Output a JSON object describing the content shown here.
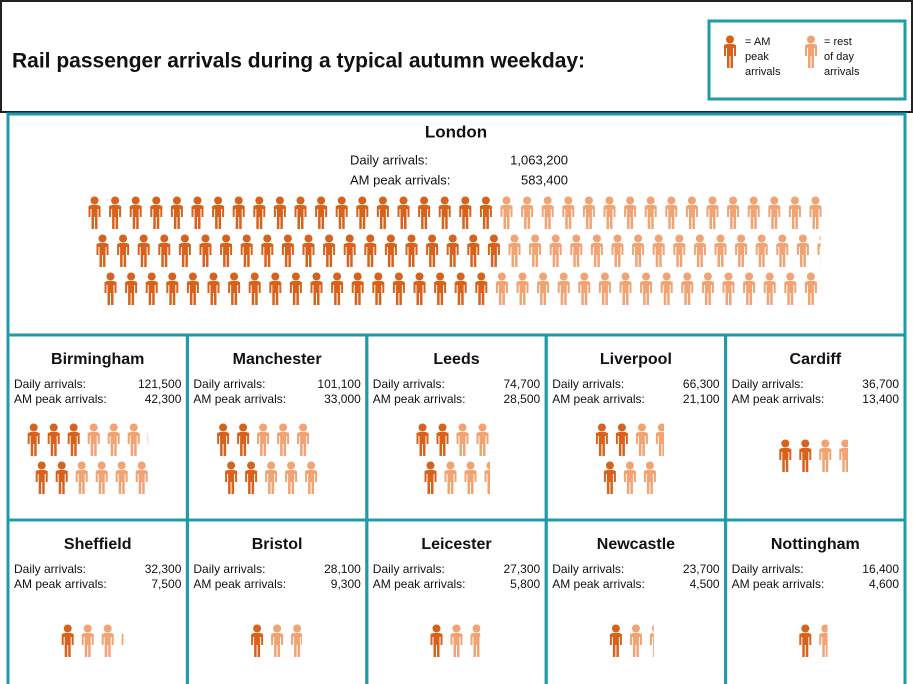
{
  "header": {
    "title": "Rail passenger arrivals during a typical autumn weekday:"
  },
  "legend": {
    "am": [
      "= AM",
      "peak",
      "arrivals"
    ],
    "rest": [
      "= rest",
      "of day",
      "arrivals"
    ],
    "am_color": "#d8621c",
    "rest_color": "#f2a373"
  },
  "labels": {
    "daily": "Daily arrivals:",
    "am": "AM peak arrivals:"
  },
  "cities": [
    {
      "name": "London",
      "daily": {
        "value": 1063200,
        "label": "1,063,200"
      },
      "am_peak": {
        "value": 583400,
        "label": "583,400"
      }
    },
    {
      "name": "Birmingham",
      "daily": {
        "value": 121500,
        "label": "121,500"
      },
      "am_peak": {
        "value": 42300,
        "label": "42,300"
      }
    },
    {
      "name": "Manchester",
      "daily": {
        "value": 101100,
        "label": "101,100"
      },
      "am_peak": {
        "value": 33000,
        "label": "33,000"
      }
    },
    {
      "name": "Leeds",
      "daily": {
        "value": 74700,
        "label": "74,700"
      },
      "am_peak": {
        "value": 28500,
        "label": "28,500"
      }
    },
    {
      "name": "Liverpool",
      "daily": {
        "value": 66300,
        "label": "66,300"
      },
      "am_peak": {
        "value": 21100,
        "label": "21,100"
      }
    },
    {
      "name": "Cardiff",
      "daily": {
        "value": 36700,
        "label": "36,700"
      },
      "am_peak": {
        "value": 13400,
        "label": "13,400"
      }
    },
    {
      "name": "Sheffield",
      "daily": {
        "value": 32300,
        "label": "32,300"
      },
      "am_peak": {
        "value": 7500,
        "label": "7,500"
      }
    },
    {
      "name": "Bristol",
      "daily": {
        "value": 28100,
        "label": "28,100"
      },
      "am_peak": {
        "value": 9300,
        "label": "9,300"
      }
    },
    {
      "name": "Leicester",
      "daily": {
        "value": 27300,
        "label": "27,300"
      },
      "am_peak": {
        "value": 5800,
        "label": "5,800"
      }
    },
    {
      "name": "Newcastle",
      "daily": {
        "value": 23700,
        "label": "23,700"
      },
      "am_peak": {
        "value": 4500,
        "label": "4,500"
      }
    },
    {
      "name": "Nottingham",
      "daily": {
        "value": 16400,
        "label": "16,400"
      },
      "am_peak": {
        "value": 4600,
        "label": "4,600"
      }
    }
  ]
}
